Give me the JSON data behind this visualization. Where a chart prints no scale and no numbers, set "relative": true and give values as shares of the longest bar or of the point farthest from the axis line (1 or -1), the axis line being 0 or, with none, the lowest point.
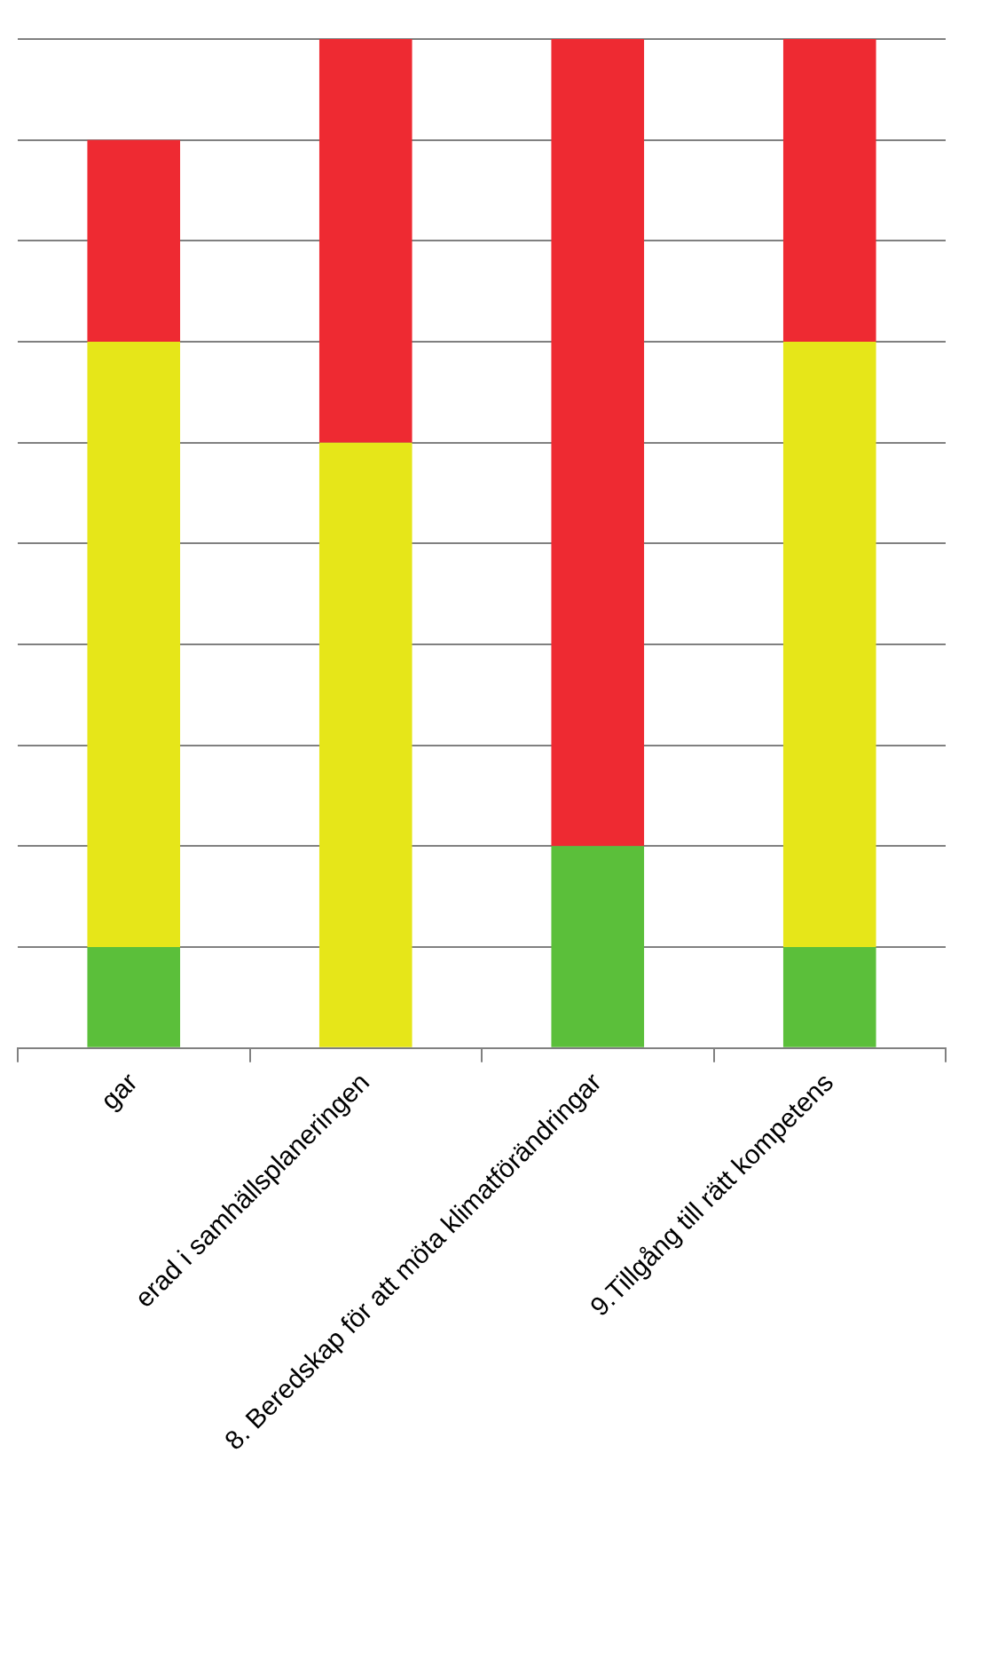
{
  "chart_data": {
    "type": "bar",
    "stacked": true,
    "relative": true,
    "grid": "y",
    "legend": false,
    "categories": [
      "gar",
      "erad i samhällsplaneringen",
      "8. Beredskap för att möta klimatförändringar",
      "9.Tillgång till rätt kompetens"
    ],
    "series": [
      {
        "color": "#5bbf3a",
        "values": [
          0.1,
          0,
          0.2,
          0.1
        ]
      },
      {
        "color": "#e6e619",
        "values": [
          0.6,
          0.6,
          0,
          0.6
        ]
      },
      {
        "color": "#ee2a32",
        "values": [
          0.2,
          0.4,
          0.8,
          0.3
        ]
      }
    ]
  }
}
